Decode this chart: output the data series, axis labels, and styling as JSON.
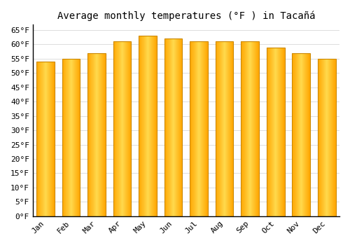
{
  "title": "Average monthly temperatures (°F ) in Tacañá",
  "months": [
    "Jan",
    "Feb",
    "Mar",
    "Apr",
    "May",
    "Jun",
    "Jul",
    "Aug",
    "Sep",
    "Oct",
    "Nov",
    "Dec"
  ],
  "values": [
    54,
    55,
    57,
    61,
    63,
    62,
    61,
    61,
    61,
    59,
    57,
    55
  ],
  "bar_color": "#FFA500",
  "bar_edge_color": "#CC8800",
  "background_color": "#FFFFFF",
  "grid_color": "#DDDDDD",
  "yticks": [
    0,
    5,
    10,
    15,
    20,
    25,
    30,
    35,
    40,
    45,
    50,
    55,
    60,
    65
  ],
  "ylim": [
    0,
    67
  ],
  "title_fontsize": 10,
  "tick_fontsize": 8,
  "font_family": "monospace"
}
